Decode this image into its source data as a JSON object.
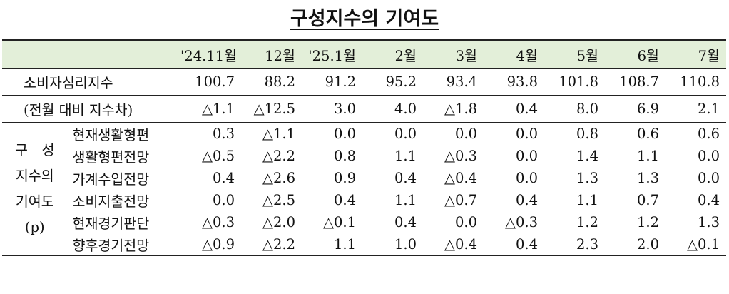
{
  "title": "구성지수의 기여도",
  "table": {
    "header": [
      "'24.11월",
      "12월",
      "'25.1월",
      "2월",
      "3월",
      "4월",
      "5월",
      "6월",
      "7월"
    ],
    "rows": [
      {
        "label": "소비자심리지수",
        "values": [
          "100.7",
          "88.2",
          "91.2",
          "95.2",
          "93.4",
          "93.8",
          "101.8",
          "108.7",
          "110.8"
        ]
      },
      {
        "label": "(전월 대비 지수차)",
        "values": [
          "△1.1",
          "△12.5",
          "3.0",
          "4.0",
          "△1.8",
          "0.4",
          "8.0",
          "6.9",
          "2.1"
        ]
      }
    ],
    "group": {
      "label_lines": [
        "구　성",
        "지수의",
        "기여도",
        "(p)"
      ],
      "rows": [
        {
          "label": "현재생활형편",
          "values": [
            "0.3",
            "△1.1",
            "0.0",
            "0.0",
            "0.0",
            "0.0",
            "0.8",
            "0.6",
            "0.6"
          ]
        },
        {
          "label": "생활형편전망",
          "values": [
            "△0.5",
            "△2.2",
            "0.8",
            "1.1",
            "△0.3",
            "0.0",
            "1.4",
            "1.1",
            "0.0"
          ]
        },
        {
          "label": "가계수입전망",
          "values": [
            "0.4",
            "△2.6",
            "0.9",
            "0.4",
            "△0.4",
            "0.0",
            "1.3",
            "1.3",
            "0.0"
          ]
        },
        {
          "label": "소비지출전망",
          "values": [
            "0.0",
            "△2.5",
            "0.4",
            "1.1",
            "△0.7",
            "0.4",
            "1.1",
            "0.7",
            "0.4"
          ]
        },
        {
          "label": "현재경기판단",
          "values": [
            "△0.3",
            "△2.0",
            "△0.1",
            "0.4",
            "0.0",
            "△0.3",
            "1.2",
            "1.2",
            "1.3"
          ]
        },
        {
          "label": "향후경기전망",
          "values": [
            "△0.9",
            "△2.2",
            "1.1",
            "1.0",
            "△0.4",
            "0.4",
            "2.3",
            "2.0",
            "△0.1"
          ]
        }
      ]
    }
  }
}
